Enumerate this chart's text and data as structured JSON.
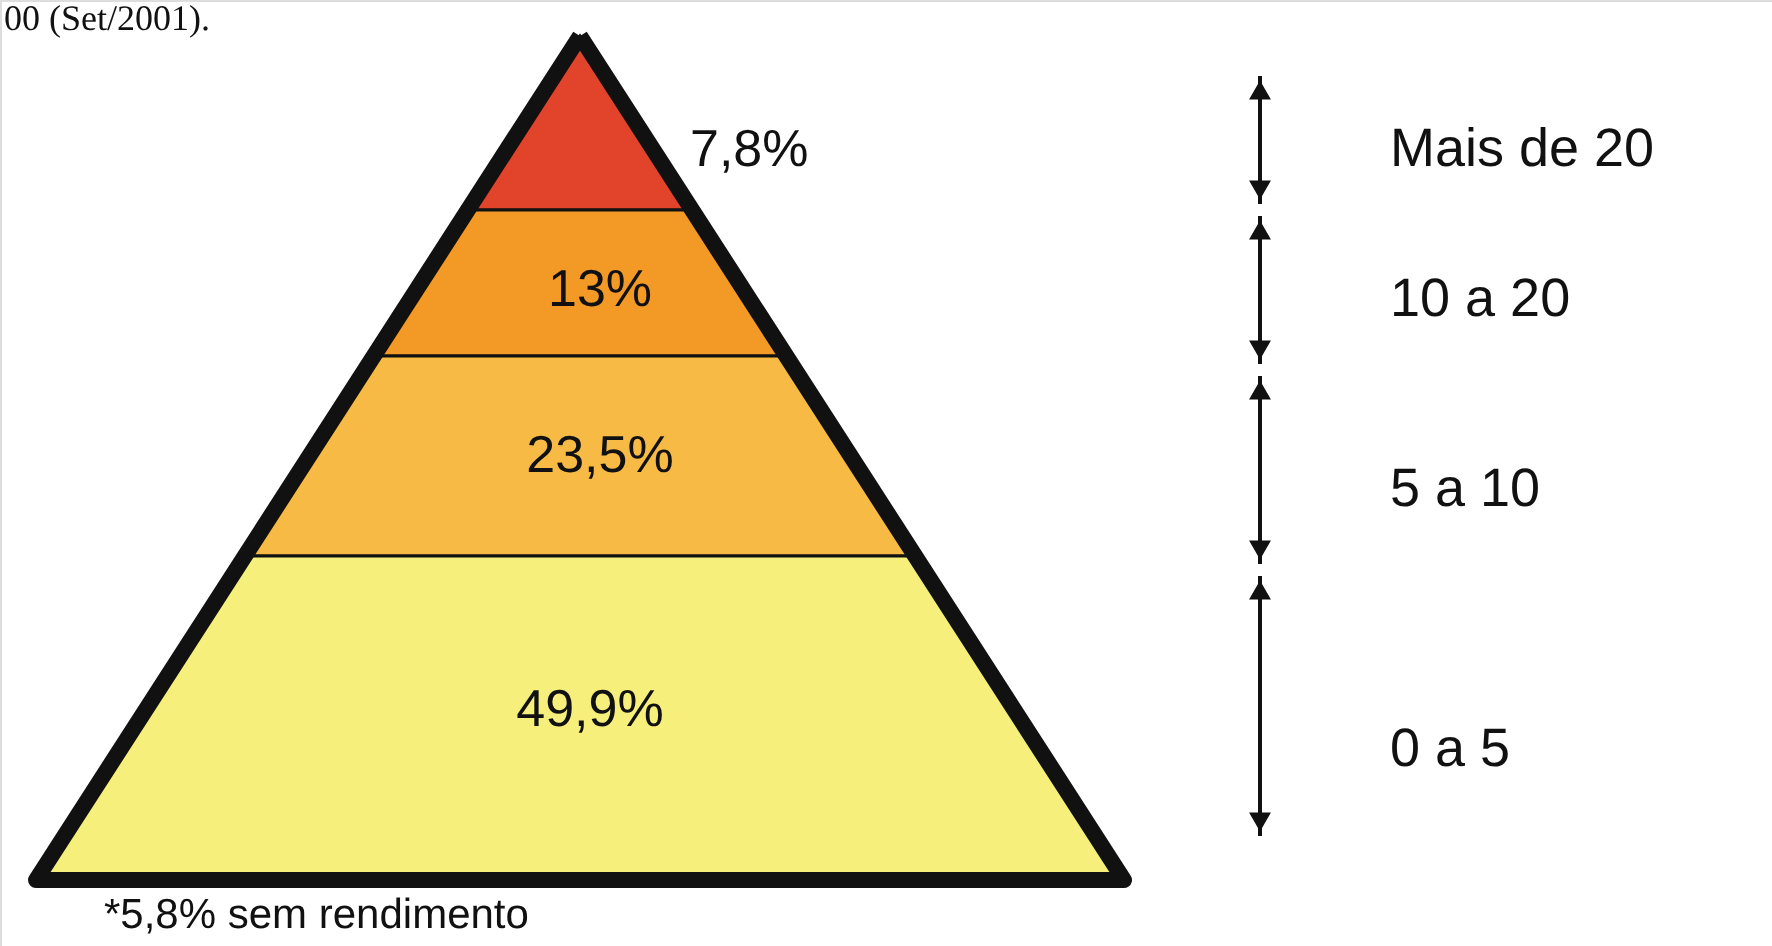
{
  "chart_data": {
    "type": "other",
    "categories": [
      "Mais de 20",
      "10 a 20",
      "5 a 10",
      "0 a 5"
    ],
    "values": [
      7.8,
      13,
      23.5,
      49.9
    ],
    "value_labels": [
      "7,8%",
      "13%",
      "23,5%",
      "49,9%"
    ],
    "colors": [
      "#e2432b",
      "#f39a26",
      "#f7bb45",
      "#f6ef7c"
    ],
    "annotations": [
      "00 (Set/2001).",
      "*5,8% sem rendimento"
    ]
  }
}
